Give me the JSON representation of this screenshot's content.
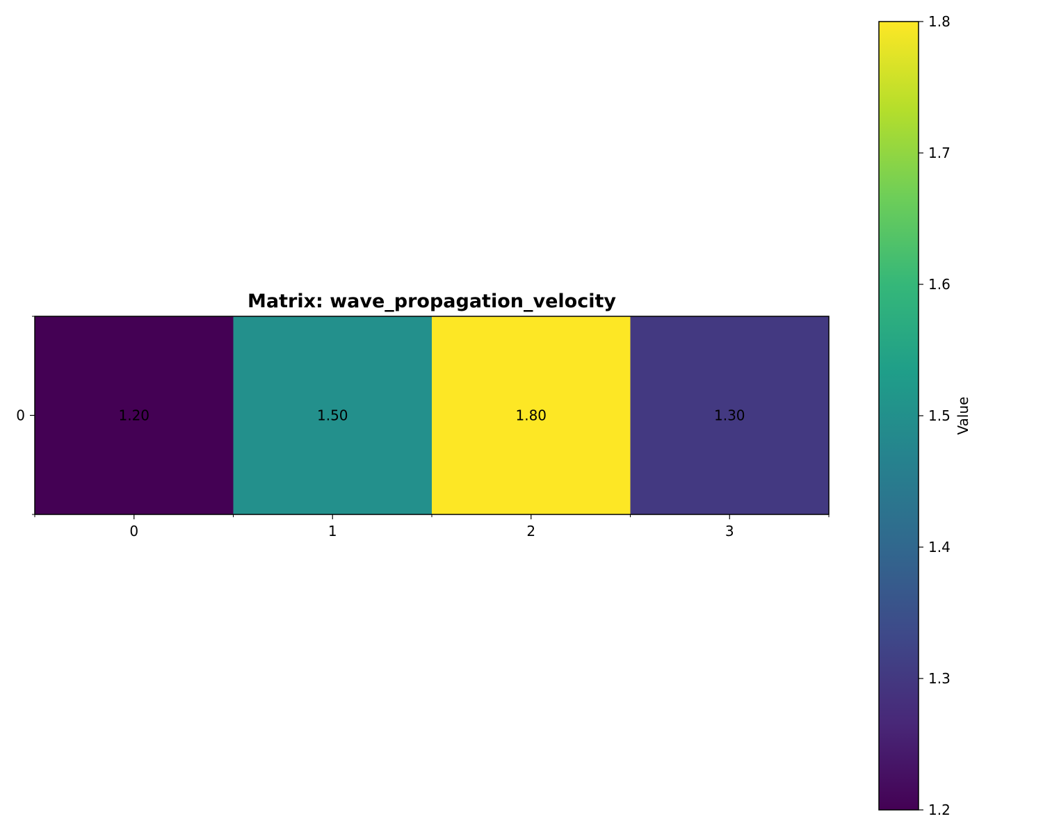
{
  "chart_data": {
    "type": "heatmap",
    "title": "Matrix: wave_propagation_velocity",
    "rows": [
      "0"
    ],
    "columns": [
      "0",
      "1",
      "2",
      "3"
    ],
    "values": [
      [
        1.2,
        1.5,
        1.8,
        1.3
      ]
    ],
    "cell_labels": [
      [
        "1.20",
        "1.50",
        "1.80",
        "1.30"
      ]
    ],
    "colormap": "viridis",
    "colorbar": {
      "label": "Value",
      "range": [
        1.2,
        1.8
      ],
      "ticks": [
        1.2,
        1.3,
        1.4,
        1.5,
        1.6,
        1.7,
        1.8
      ],
      "tick_labels": [
        "1.2",
        "1.3",
        "1.4",
        "1.5",
        "1.6",
        "1.7",
        "1.8"
      ]
    },
    "grid": false
  }
}
